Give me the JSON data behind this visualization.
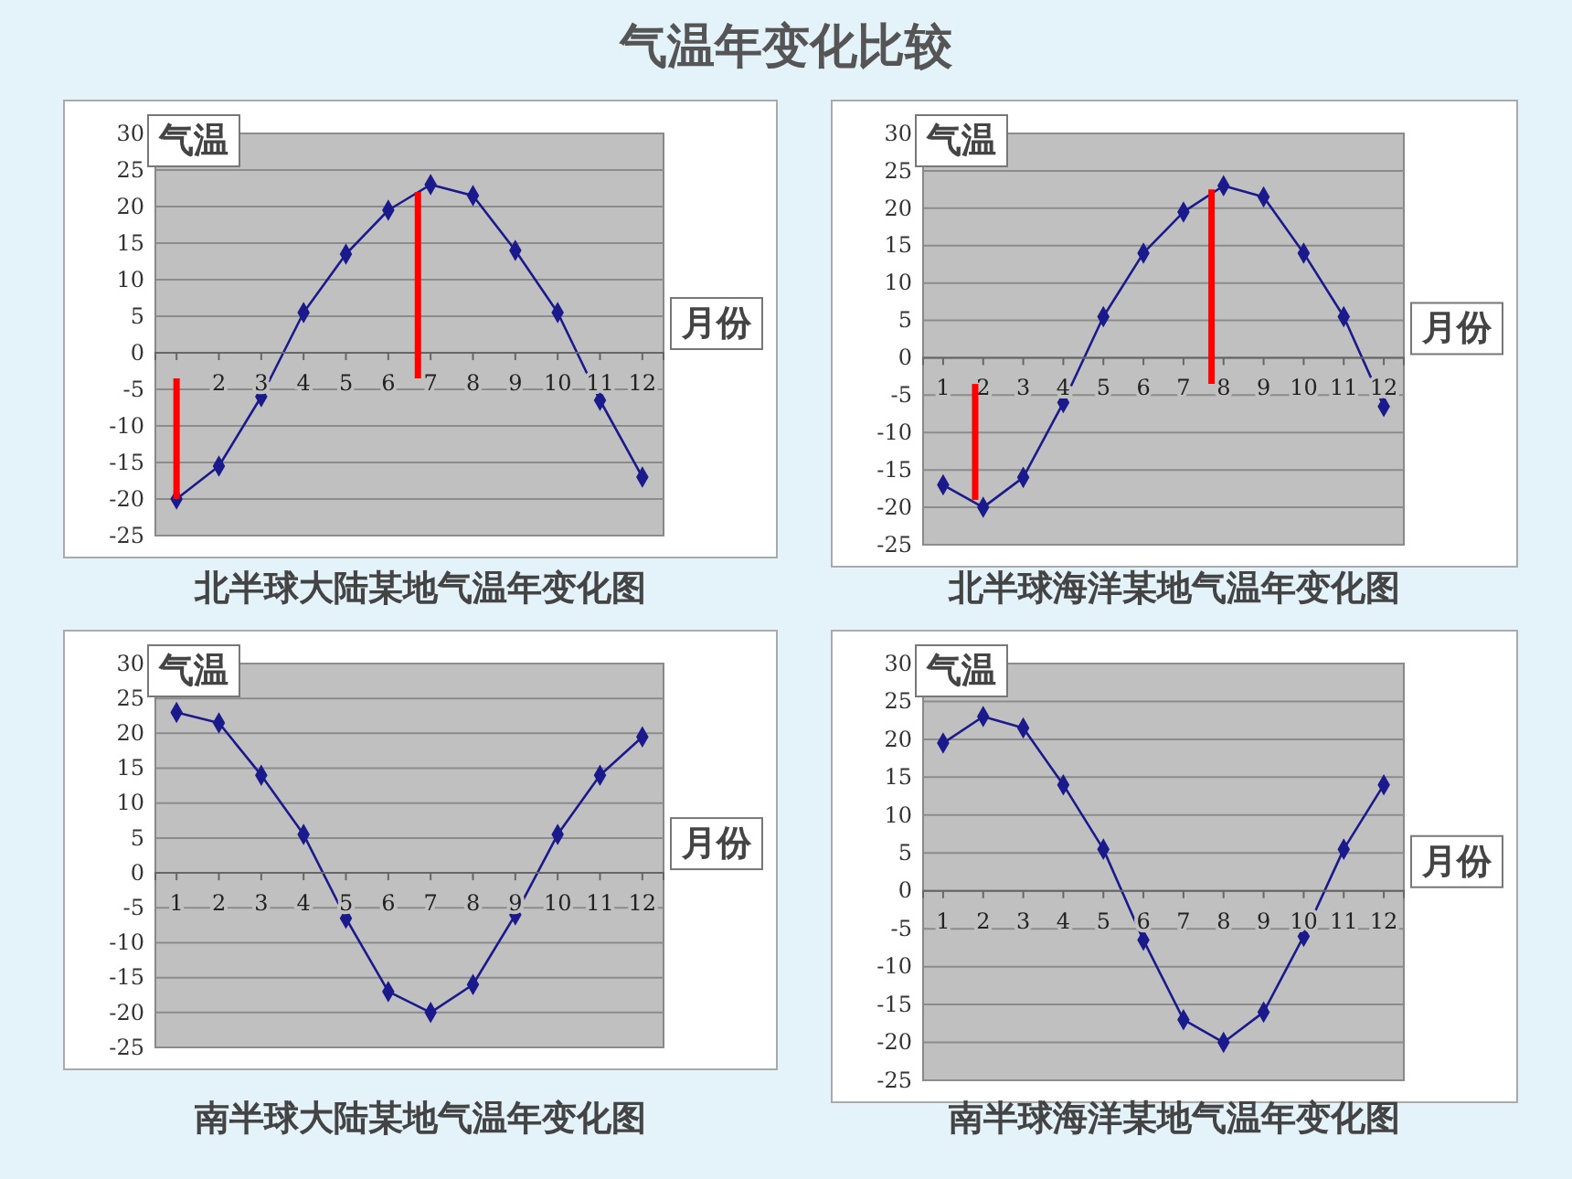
{
  "chart_data": [
    {
      "type": "line",
      "title": "北半球大陆某地气温年变化图",
      "annotations": [
        "气温年变化比较"
      ],
      "xlabel": "月份",
      "ylabel": "气温",
      "x": [
        1,
        2,
        3,
        4,
        5,
        6,
        7,
        8,
        9,
        10,
        11,
        12
      ],
      "xlim": [
        0.5,
        12.5
      ],
      "xticks": [
        {
          "value": 1,
          "label": null
        },
        2,
        3,
        4,
        5,
        6,
        7,
        8,
        9,
        10,
        11,
        12
      ],
      "ylim": [
        -25,
        30
      ],
      "yticks": [
        -25,
        -20,
        -15,
        -10,
        -5,
        0,
        5,
        10,
        15,
        20,
        25,
        30
      ],
      "grid": "y",
      "marker": "diamond",
      "series": [
        {
          "color": "#1a1a8c",
          "values": [
            -20,
            -15.5,
            -6,
            5.5,
            13.5,
            19.5,
            23,
            21.5,
            14,
            5.5,
            -6.5,
            -17
          ]
        },
        {
          "color": "#ff0000",
          "x": [
            1,
            1
          ],
          "values": [
            -3.5,
            -20
          ],
          "marker": "none"
        },
        {
          "color": "#ff0000",
          "x": [
            6.7,
            6.7
          ],
          "values": [
            -3.5,
            22
          ],
          "marker": "none"
        }
      ]
    },
    {
      "type": "line",
      "title": "北半球海洋某地气温年变化图",
      "xlabel": "月份",
      "ylabel": "气温",
      "x": [
        1,
        2,
        3,
        4,
        5,
        6,
        7,
        8,
        9,
        10,
        11,
        12
      ],
      "xlim": [
        0.5,
        12.5
      ],
      "xticks": [
        1,
        2,
        3,
        4,
        5,
        6,
        7,
        8,
        9,
        10,
        11,
        12
      ],
      "ylim": [
        -25,
        30
      ],
      "yticks": [
        -25,
        -20,
        -15,
        -10,
        -5,
        0,
        5,
        10,
        15,
        20,
        25,
        30
      ],
      "grid": "y",
      "marker": "diamond",
      "series": [
        {
          "color": "#1a1a8c",
          "values": [
            -17,
            -20,
            -16,
            -6,
            5.5,
            14,
            19.5,
            23,
            21.5,
            14,
            5.5,
            -6.5
          ]
        },
        {
          "color": "#ff0000",
          "x": [
            1.8,
            1.8
          ],
          "values": [
            -3.5,
            -19
          ],
          "marker": "none"
        },
        {
          "color": "#ff0000",
          "x": [
            7.7,
            7.7
          ],
          "values": [
            -3.5,
            22.5
          ],
          "marker": "none"
        }
      ]
    },
    {
      "type": "line",
      "title": "南半球大陆某地气温年变化图",
      "xlabel": "月份",
      "ylabel": "气温",
      "x": [
        1,
        2,
        3,
        4,
        5,
        6,
        7,
        8,
        9,
        10,
        11,
        12
      ],
      "xlim": [
        0.5,
        12.5
      ],
      "xticks": [
        1,
        2,
        3,
        4,
        5,
        6,
        7,
        8,
        9,
        10,
        11,
        12
      ],
      "ylim": [
        -25,
        30
      ],
      "yticks": [
        -25,
        -20,
        -15,
        -10,
        -5,
        0,
        5,
        10,
        15,
        20,
        25,
        30
      ],
      "grid": "y",
      "marker": "diamond",
      "series": [
        {
          "color": "#1a1a8c",
          "values": [
            23,
            21.5,
            14,
            5.5,
            -6.5,
            -17,
            -20,
            -16,
            -6,
            5.5,
            14,
            19.5
          ]
        }
      ]
    },
    {
      "type": "line",
      "title": "南半球海洋某地气温年变化图",
      "xlabel": "月份",
      "ylabel": "气温",
      "x": [
        1,
        2,
        3,
        4,
        5,
        6,
        7,
        8,
        9,
        10,
        11,
        12
      ],
      "xlim": [
        0.5,
        12.5
      ],
      "xticks": [
        1,
        2,
        3,
        4,
        5,
        6,
        7,
        8,
        9,
        10,
        11,
        12
      ],
      "ylim": [
        -25,
        30
      ],
      "yticks": [
        -25,
        -20,
        -15,
        -10,
        -5,
        0,
        5,
        10,
        15,
        20,
        25,
        30
      ],
      "grid": "y",
      "marker": "diamond",
      "series": [
        {
          "color": "#1a1a8c",
          "values": [
            19.5,
            23,
            21.5,
            14,
            5.5,
            -6.5,
            -17,
            -20,
            -16,
            -6,
            5.5,
            14
          ]
        }
      ]
    }
  ]
}
